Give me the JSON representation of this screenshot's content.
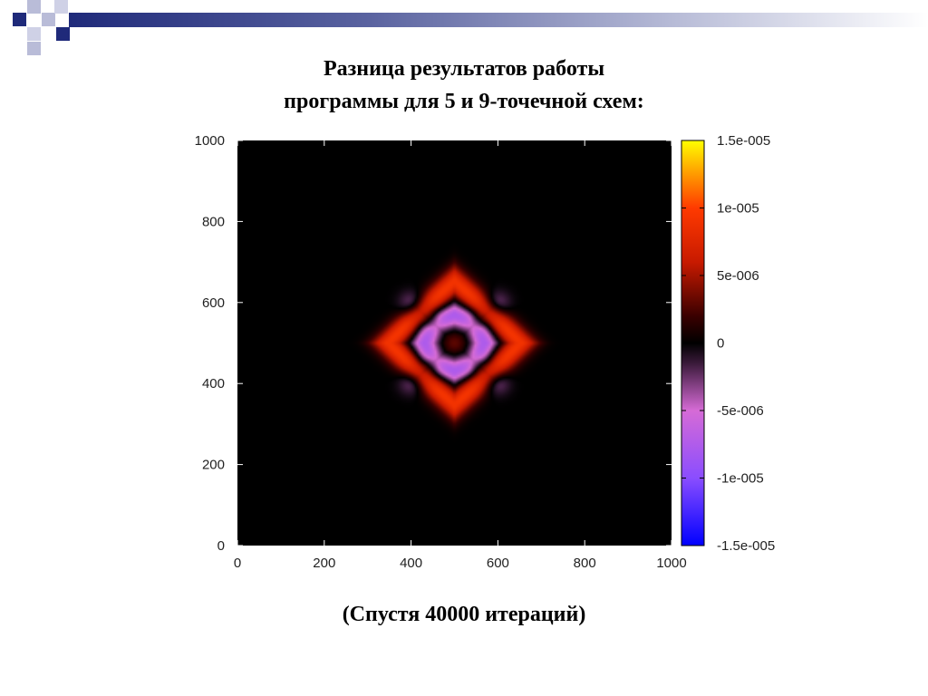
{
  "slide": {
    "title_line1": "Разница результатов работы",
    "title_line2": "программы для 5 и 9-точечной схем:",
    "caption": "(Спустя 40000 итераций)"
  },
  "chart_data": {
    "type": "heatmap",
    "title": "",
    "xlabel": "",
    "ylabel": "",
    "xlim": [
      0,
      1000
    ],
    "ylim": [
      0,
      1000
    ],
    "x_ticks": [
      "0",
      "200",
      "400",
      "600",
      "800",
      "1000"
    ],
    "y_ticks": [
      "0",
      "200",
      "400",
      "600",
      "800",
      "1000"
    ],
    "colorbar": {
      "range": [
        -1.5e-05,
        1.5e-05
      ],
      "ticks": [
        {
          "value": 1.5e-05,
          "label": "1.5e-005"
        },
        {
          "value": 1e-05,
          "label": "1e-005"
        },
        {
          "value": 5e-06,
          "label": "5e-006"
        },
        {
          "value": 0,
          "label": "0"
        },
        {
          "value": -5e-06,
          "label": "-5e-006"
        },
        {
          "value": -1e-05,
          "label": "-1e-005"
        },
        {
          "value": -1.5e-05,
          "label": "-1.5e-005"
        }
      ],
      "colors": [
        {
          "value": -1.5e-05,
          "color": "#0000ff"
        },
        {
          "value": -1e-05,
          "color": "#8a4dff"
        },
        {
          "value": -5e-06,
          "color": "#d66bd6"
        },
        {
          "value": -1.5e-06,
          "color": "#3a1a3a"
        },
        {
          "value": 0,
          "color": "#000000"
        },
        {
          "value": 2e-06,
          "color": "#3a0000"
        },
        {
          "value": 6e-06,
          "color": "#c81a00"
        },
        {
          "value": 1e-05,
          "color": "#ff3a00"
        },
        {
          "value": 1.25e-05,
          "color": "#ff9a00"
        },
        {
          "value": 1.5e-05,
          "color": "#ffff00"
        }
      ]
    },
    "field": {
      "center": [
        500,
        500
      ],
      "core_value": 3e-06,
      "inner_negative_ring": {
        "radius": 60,
        "width": 28,
        "value": -8e-06
      },
      "outer_positive_ring": {
        "radius": 120,
        "width": 32,
        "value": 9.5e-06
      },
      "hotspot_value": 1.3e-05,
      "outer_negative_lobes_value": -4e-06
    }
  },
  "icons": {
    "deco": "slide-template-squares"
  }
}
